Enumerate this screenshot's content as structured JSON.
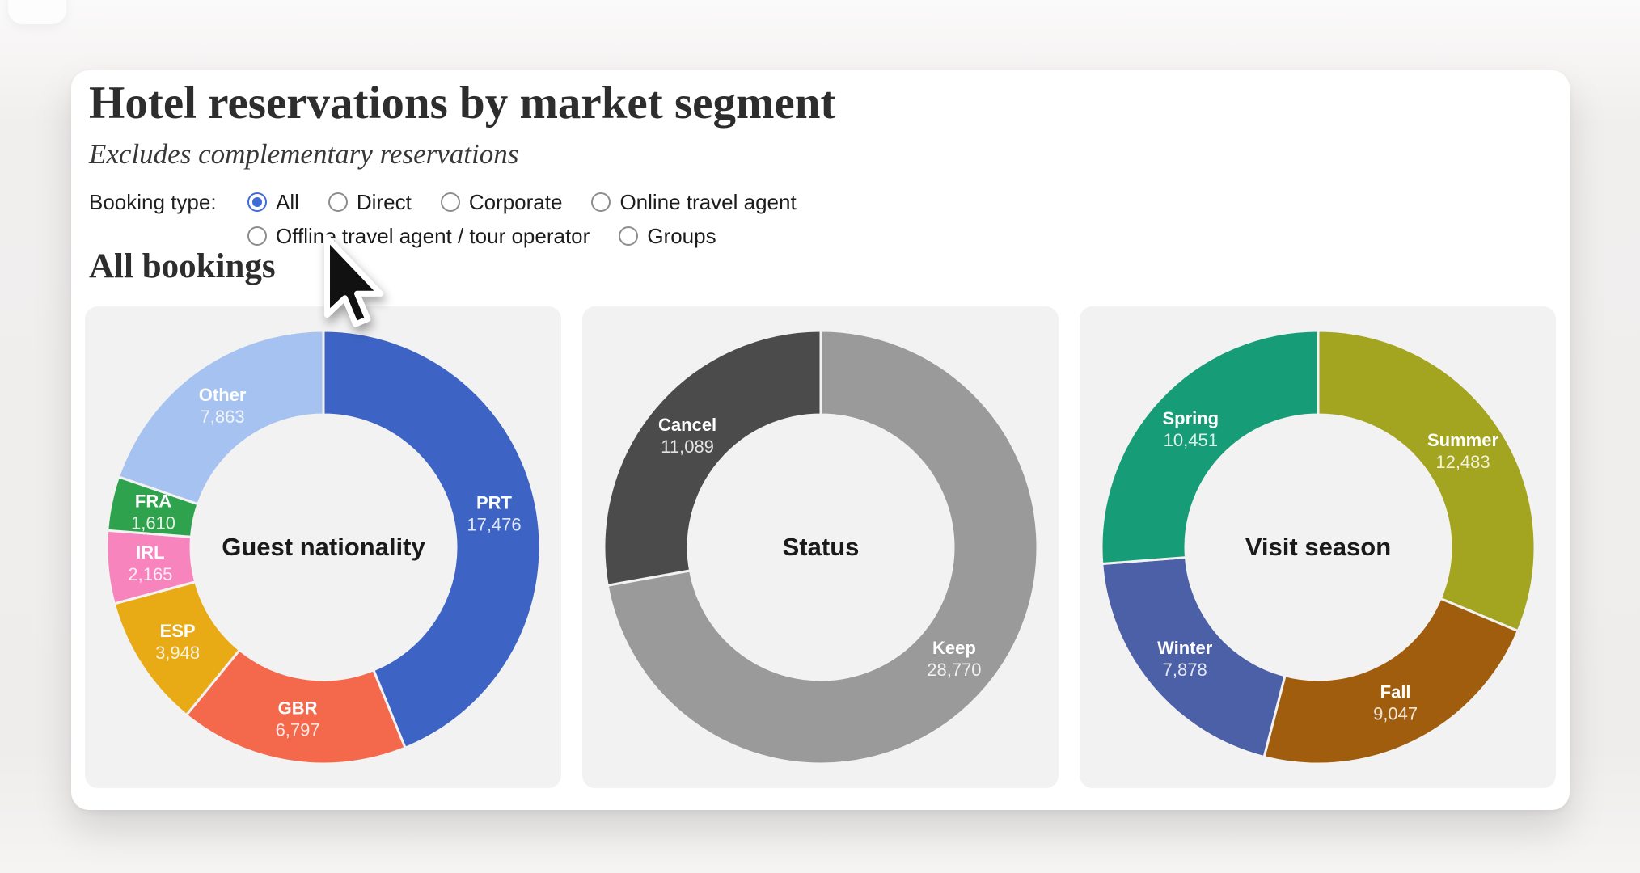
{
  "header": {
    "title": "Hotel reservations by market segment",
    "subtitle": "Excludes complementary reservations"
  },
  "controls": {
    "label": "Booking type:",
    "options": [
      {
        "label": "All",
        "selected": true
      },
      {
        "label": "Direct",
        "selected": false
      },
      {
        "label": "Corporate",
        "selected": false
      },
      {
        "label": "Online travel agent",
        "selected": false
      },
      {
        "label": "Offline travel agent / tour operator",
        "selected": false
      },
      {
        "label": "Groups",
        "selected": false
      }
    ]
  },
  "section": {
    "heading": "All bookings"
  },
  "chart_data": [
    {
      "type": "donut",
      "title": "Guest nationality",
      "total": 39859,
      "order": "clockwise-from-top",
      "segments": [
        {
          "label": "PRT",
          "value": 17476,
          "display": "17,476",
          "color": "#3d63c4"
        },
        {
          "label": "GBR",
          "value": 6797,
          "display": "6,797",
          "color": "#f4694c"
        },
        {
          "label": "ESP",
          "value": 3948,
          "display": "3,948",
          "color": "#e9ab15"
        },
        {
          "label": "IRL",
          "value": 2165,
          "display": "2,165",
          "color": "#f784bc"
        },
        {
          "label": "FRA",
          "value": 1610,
          "display": "1,610",
          "color": "#2fa24d"
        },
        {
          "label": "Other",
          "value": 7863,
          "display": "7,863",
          "color": "#a5c2f0"
        }
      ]
    },
    {
      "type": "donut",
      "title": "Status",
      "total": 39859,
      "order": "clockwise-from-top",
      "segments": [
        {
          "label": "Keep",
          "value": 28770,
          "display": "28,770",
          "color": "#9a9a9a"
        },
        {
          "label": "Cancel",
          "value": 11089,
          "display": "11,089",
          "color": "#4b4b4b"
        }
      ]
    },
    {
      "type": "donut",
      "title": "Visit season",
      "total": 39859,
      "order": "clockwise-from-top",
      "segments": [
        {
          "label": "Summer",
          "value": 12483,
          "display": "12,483",
          "color": "#a3a41f"
        },
        {
          "label": "Fall",
          "value": 9047,
          "display": "9,047",
          "color": "#a05d0e"
        },
        {
          "label": "Winter",
          "value": 7878,
          "display": "7,878",
          "color": "#4c60a8"
        },
        {
          "label": "Spring",
          "value": 10451,
          "display": "10,451",
          "color": "#169d78"
        }
      ]
    }
  ],
  "colors": {
    "card_bg": "#ffffff",
    "panel_bg": "#f2f2f2",
    "radio_selected": "#3e6bd6",
    "title_text": "#2d2d2d"
  }
}
